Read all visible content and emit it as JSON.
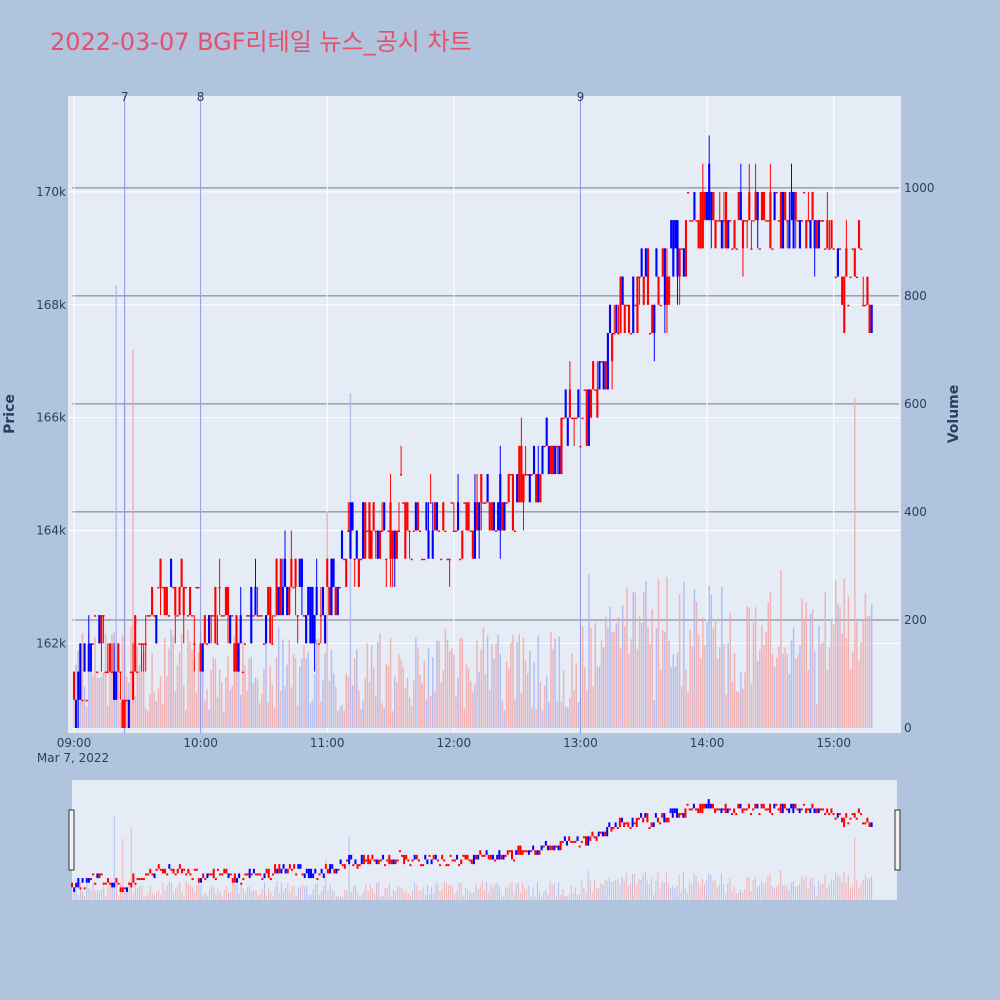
{
  "title": "2022-03-07 BGF리테일 뉴스_공시 차트",
  "colors": {
    "up": "#ff0000",
    "down": "#0000ff",
    "plot_bg": "#e5ecf6",
    "paper_bg": "#b0c4de",
    "title": "#e8506a",
    "marker_line": "#8a96e8"
  },
  "chart_data": {
    "type": "candlestick",
    "xlabel": "",
    "date_label": "Mar 7, 2022",
    "x_ticks": [
      "09:00",
      "10:00",
      "11:00",
      "12:00",
      "13:00",
      "14:00",
      "15:00"
    ],
    "ylabel": "Price",
    "y_ticks": [
      "162k",
      "164k",
      "166k",
      "168k",
      "170k"
    ],
    "y_tick_values": [
      162000,
      164000,
      166000,
      168000,
      170000
    ],
    "ylim": [
      160500,
      171700
    ],
    "y2label": "Volume",
    "y2_ticks": [
      "0",
      "200",
      "400",
      "600",
      "800",
      "1000"
    ],
    "y2_tick_values": [
      0,
      200,
      400,
      600,
      800,
      1000
    ],
    "y2lim": [
      0,
      1170
    ],
    "xlim": [
      "09:00",
      "15:30"
    ],
    "news_markers": [
      {
        "label": "7",
        "time": "09:24"
      },
      {
        "label": "8",
        "time": "09:60"
      },
      {
        "label": "9",
        "time": "13:00"
      }
    ],
    "price_path": [
      [
        "09:00",
        161000
      ],
      [
        "09:05",
        161500
      ],
      [
        "09:10",
        162000
      ],
      [
        "09:15",
        161800
      ],
      [
        "09:20",
        161500
      ],
      [
        "09:25",
        161000
      ],
      [
        "09:30",
        162000
      ],
      [
        "09:35",
        162500
      ],
      [
        "09:40",
        162800
      ],
      [
        "09:45",
        163000
      ],
      [
        "09:50",
        163200
      ],
      [
        "09:55",
        162500
      ],
      [
        "10:00",
        162200
      ],
      [
        "10:10",
        162300
      ],
      [
        "10:20",
        162200
      ],
      [
        "10:30",
        162500
      ],
      [
        "10:40",
        163000
      ],
      [
        "10:45",
        163200
      ],
      [
        "10:50",
        162500
      ],
      [
        "10:55",
        162300
      ],
      [
        "11:00",
        162800
      ],
      [
        "11:05",
        163200
      ],
      [
        "11:10",
        163800
      ],
      [
        "11:15",
        163700
      ],
      [
        "11:20",
        163900
      ],
      [
        "11:30",
        164000
      ],
      [
        "11:35",
        164300
      ],
      [
        "11:40",
        163800
      ],
      [
        "11:50",
        163900
      ],
      [
        "11:55",
        163800
      ],
      [
        "12:00",
        164000
      ],
      [
        "12:05",
        164300
      ],
      [
        "12:10",
        164200
      ],
      [
        "12:20",
        164500
      ],
      [
        "12:30",
        164700
      ],
      [
        "12:35",
        165000
      ],
      [
        "12:40",
        165100
      ],
      [
        "12:45",
        165300
      ],
      [
        "12:50",
        165700
      ],
      [
        "12:55",
        165800
      ],
      [
        "13:00",
        165800
      ],
      [
        "13:05",
        166300
      ],
      [
        "13:10",
        166800
      ],
      [
        "13:15",
        167400
      ],
      [
        "13:20",
        167900
      ],
      [
        "13:25",
        168200
      ],
      [
        "13:30",
        168300
      ],
      [
        "13:35",
        168200
      ],
      [
        "13:40",
        168700
      ],
      [
        "13:45",
        168800
      ],
      [
        "13:50",
        169200
      ],
      [
        "13:55",
        169600
      ],
      [
        "14:00",
        169800
      ],
      [
        "14:10",
        169400
      ],
      [
        "14:20",
        169700
      ],
      [
        "14:25",
        169200
      ],
      [
        "14:30",
        169600
      ],
      [
        "14:40",
        169300
      ],
      [
        "14:50",
        169700
      ],
      [
        "15:00",
        168800
      ],
      [
        "15:05",
        168200
      ],
      [
        "15:10",
        169000
      ],
      [
        "15:15",
        168600
      ],
      [
        "15:18",
        167800
      ]
    ],
    "volume_hint": "per-minute volume bars, typically 30–350, peaks near 09:20 (~820) and 15:10 (~610)"
  }
}
